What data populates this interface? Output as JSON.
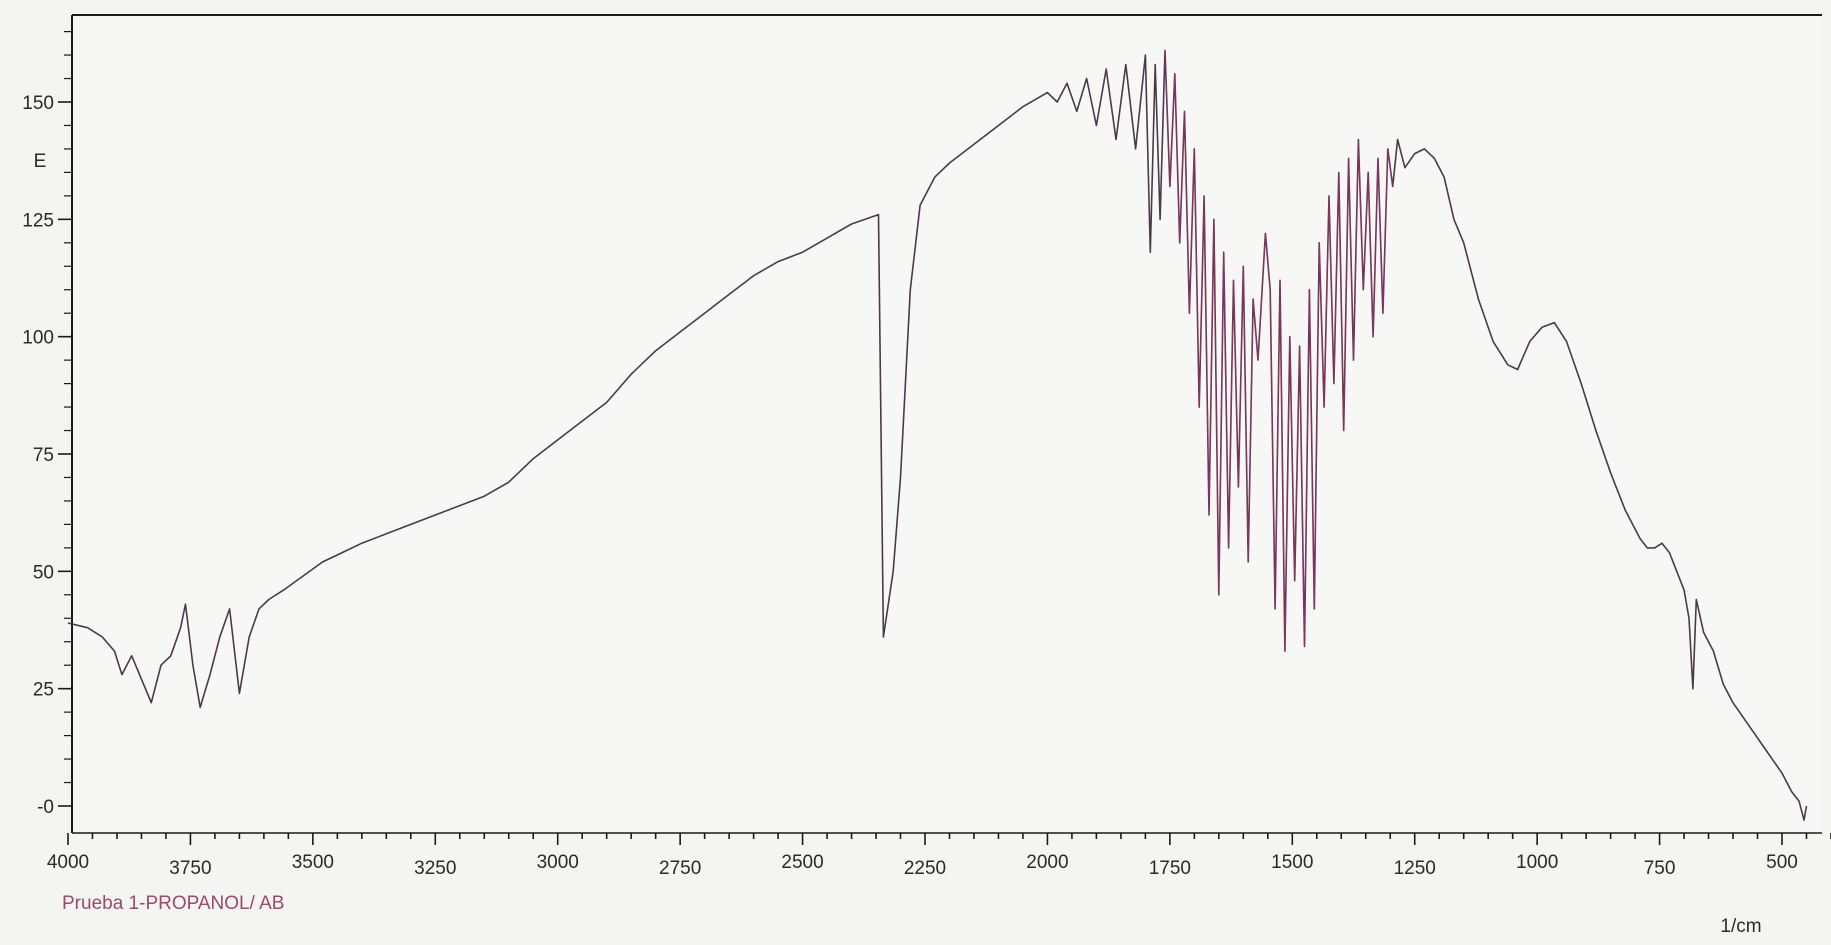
{
  "caption": "Prueba 1-PROPANOL/ AB",
  "colors": {
    "trace": "#4a3a4a",
    "accent": "#c8287a",
    "axis": "#1a1a1a",
    "caption": "#9a4a6a",
    "background": "#f4f4f2"
  },
  "chart_data": {
    "type": "line",
    "title": "",
    "xlabel": "1/cm",
    "ylabel": "E",
    "xlim": [
      4000,
      350
    ],
    "ylim": [
      -5,
      168
    ],
    "x_ticks": [
      4000,
      3750,
      3500,
      3250,
      3000,
      2750,
      2500,
      2250,
      2000,
      1750,
      1500,
      1250,
      1000,
      750,
      500
    ],
    "y_ticks": [
      0,
      25,
      50,
      75,
      100,
      125,
      150
    ],
    "y_tick_labels": [
      "-0",
      "25",
      "50",
      "75",
      "100",
      "125",
      "150"
    ],
    "grid": false,
    "series": [
      {
        "values": [
          [
            4000,
            39
          ],
          [
            3960,
            38
          ],
          [
            3930,
            36
          ],
          [
            3905,
            33
          ],
          [
            3890,
            28
          ],
          [
            3870,
            32
          ],
          [
            3850,
            27
          ],
          [
            3830,
            22
          ],
          [
            3810,
            30
          ],
          [
            3790,
            32
          ],
          [
            3770,
            38
          ],
          [
            3760,
            43
          ],
          [
            3745,
            30
          ],
          [
            3730,
            21
          ],
          [
            3710,
            28
          ],
          [
            3690,
            36
          ],
          [
            3670,
            42
          ],
          [
            3650,
            24
          ],
          [
            3630,
            36
          ],
          [
            3610,
            42
          ],
          [
            3590,
            44
          ],
          [
            3560,
            46
          ],
          [
            3520,
            49
          ],
          [
            3480,
            52
          ],
          [
            3440,
            54
          ],
          [
            3400,
            56
          ],
          [
            3350,
            58
          ],
          [
            3300,
            60
          ],
          [
            3250,
            62
          ],
          [
            3200,
            64
          ],
          [
            3150,
            66
          ],
          [
            3100,
            69
          ],
          [
            3050,
            74
          ],
          [
            3000,
            78
          ],
          [
            2950,
            82
          ],
          [
            2900,
            86
          ],
          [
            2850,
            92
          ],
          [
            2800,
            97
          ],
          [
            2750,
            101
          ],
          [
            2700,
            105
          ],
          [
            2650,
            109
          ],
          [
            2600,
            113
          ],
          [
            2550,
            116
          ],
          [
            2500,
            118
          ],
          [
            2450,
            121
          ],
          [
            2400,
            124
          ],
          [
            2345,
            126
          ],
          [
            2335,
            36
          ],
          [
            2315,
            50
          ],
          [
            2300,
            70
          ],
          [
            2280,
            110
          ],
          [
            2260,
            128
          ],
          [
            2230,
            134
          ],
          [
            2200,
            137
          ],
          [
            2150,
            141
          ],
          [
            2100,
            145
          ],
          [
            2050,
            149
          ],
          [
            2000,
            152
          ],
          [
            1980,
            150
          ],
          [
            1960,
            154
          ],
          [
            1940,
            148
          ],
          [
            1920,
            155
          ],
          [
            1900,
            145
          ],
          [
            1880,
            157
          ],
          [
            1860,
            142
          ],
          [
            1840,
            158
          ],
          [
            1820,
            140
          ],
          [
            1800,
            160
          ],
          [
            1790,
            118
          ],
          [
            1780,
            158
          ],
          [
            1770,
            125
          ],
          [
            1760,
            161
          ],
          [
            1750,
            132
          ],
          [
            1740,
            156
          ],
          [
            1730,
            120
          ],
          [
            1720,
            148
          ],
          [
            1710,
            105
          ],
          [
            1700,
            140
          ],
          [
            1690,
            85
          ],
          [
            1680,
            130
          ],
          [
            1670,
            62
          ],
          [
            1660,
            125
          ],
          [
            1650,
            45
          ],
          [
            1640,
            118
          ],
          [
            1630,
            55
          ],
          [
            1620,
            112
          ],
          [
            1610,
            68
          ],
          [
            1600,
            115
          ],
          [
            1590,
            52
          ],
          [
            1580,
            108
          ],
          [
            1570,
            95
          ],
          [
            1555,
            122
          ],
          [
            1545,
            110
          ],
          [
            1535,
            42
          ],
          [
            1525,
            112
          ],
          [
            1515,
            33
          ],
          [
            1505,
            100
          ],
          [
            1495,
            48
          ],
          [
            1485,
            98
          ],
          [
            1475,
            34
          ],
          [
            1465,
            110
          ],
          [
            1455,
            42
          ],
          [
            1445,
            120
          ],
          [
            1435,
            85
          ],
          [
            1425,
            130
          ],
          [
            1415,
            90
          ],
          [
            1405,
            135
          ],
          [
            1395,
            80
          ],
          [
            1385,
            138
          ],
          [
            1375,
            95
          ],
          [
            1365,
            142
          ],
          [
            1355,
            110
          ],
          [
            1345,
            135
          ],
          [
            1335,
            100
          ],
          [
            1325,
            138
          ],
          [
            1315,
            105
          ],
          [
            1305,
            140
          ],
          [
            1295,
            132
          ],
          [
            1285,
            142
          ],
          [
            1270,
            136
          ],
          [
            1250,
            139
          ],
          [
            1230,
            140
          ],
          [
            1210,
            138
          ],
          [
            1190,
            134
          ],
          [
            1170,
            125
          ],
          [
            1150,
            120
          ],
          [
            1120,
            108
          ],
          [
            1090,
            99
          ],
          [
            1060,
            94
          ],
          [
            1040,
            93
          ],
          [
            1015,
            99
          ],
          [
            990,
            102
          ],
          [
            965,
            103
          ],
          [
            940,
            99
          ],
          [
            910,
            90
          ],
          [
            880,
            80
          ],
          [
            850,
            71
          ],
          [
            820,
            63
          ],
          [
            790,
            57
          ],
          [
            775,
            55
          ],
          [
            760,
            55
          ],
          [
            745,
            56
          ],
          [
            730,
            54
          ],
          [
            715,
            50
          ],
          [
            700,
            46
          ],
          [
            690,
            40
          ],
          [
            682,
            25
          ],
          [
            675,
            44
          ],
          [
            660,
            37
          ],
          [
            640,
            33
          ],
          [
            620,
            26
          ],
          [
            600,
            22
          ],
          [
            580,
            19
          ],
          [
            560,
            16
          ],
          [
            540,
            13
          ],
          [
            520,
            10
          ],
          [
            500,
            7
          ],
          [
            480,
            3
          ],
          [
            465,
            1
          ],
          [
            455,
            -3
          ],
          [
            450,
            0
          ]
        ]
      }
    ]
  }
}
